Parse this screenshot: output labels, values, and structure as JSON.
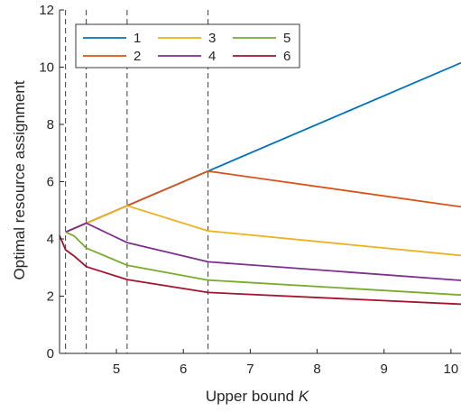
{
  "chart_data": {
    "type": "line",
    "xlabel": "Upper bound ",
    "xlabel_italic": "K",
    "ylabel": "Optimal resource assignment",
    "xlim": [
      4.15,
      10.15
    ],
    "ylim": [
      0,
      12
    ],
    "xticks": [
      5,
      6,
      7,
      8,
      9,
      10
    ],
    "yticks": [
      0,
      2,
      4,
      6,
      8,
      10,
      12
    ],
    "grid": false,
    "legend_position": "top-left",
    "vlines": [
      4.24,
      4.55,
      5.16,
      6.37
    ],
    "series": [
      {
        "name": "1",
        "color": "#0072BD",
        "points": [
          [
            4.24,
            4.24
          ],
          [
            6.37,
            6.37
          ],
          [
            10.15,
            10.15
          ]
        ]
      },
      {
        "name": "2",
        "color": "#D95319",
        "points": [
          [
            4.24,
            4.24
          ],
          [
            6.37,
            6.37
          ],
          [
            10.15,
            5.12
          ]
        ]
      },
      {
        "name": "3",
        "color": "#EDB120",
        "points": [
          [
            4.24,
            4.24
          ],
          [
            5.16,
            5.16
          ],
          [
            6.37,
            4.28
          ],
          [
            10.15,
            3.42
          ]
        ]
      },
      {
        "name": "4",
        "color": "#7E2F8E",
        "points": [
          [
            4.24,
            4.24
          ],
          [
            4.55,
            4.55
          ],
          [
            5.16,
            3.87
          ],
          [
            6.37,
            3.2
          ],
          [
            10.15,
            2.55
          ]
        ]
      },
      {
        "name": "5",
        "color": "#77AC30",
        "points": [
          [
            4.24,
            4.24
          ],
          [
            4.37,
            4.1
          ],
          [
            4.55,
            3.68
          ],
          [
            5.16,
            3.08
          ],
          [
            6.37,
            2.56
          ],
          [
            10.15,
            2.04
          ]
        ]
      },
      {
        "name": "6",
        "color": "#A2142F",
        "points": [
          [
            4.15,
            4.12
          ],
          [
            4.24,
            3.62
          ],
          [
            4.37,
            3.4
          ],
          [
            4.55,
            3.03
          ],
          [
            5.16,
            2.58
          ],
          [
            6.37,
            2.13
          ],
          [
            10.15,
            1.72
          ]
        ]
      }
    ]
  }
}
